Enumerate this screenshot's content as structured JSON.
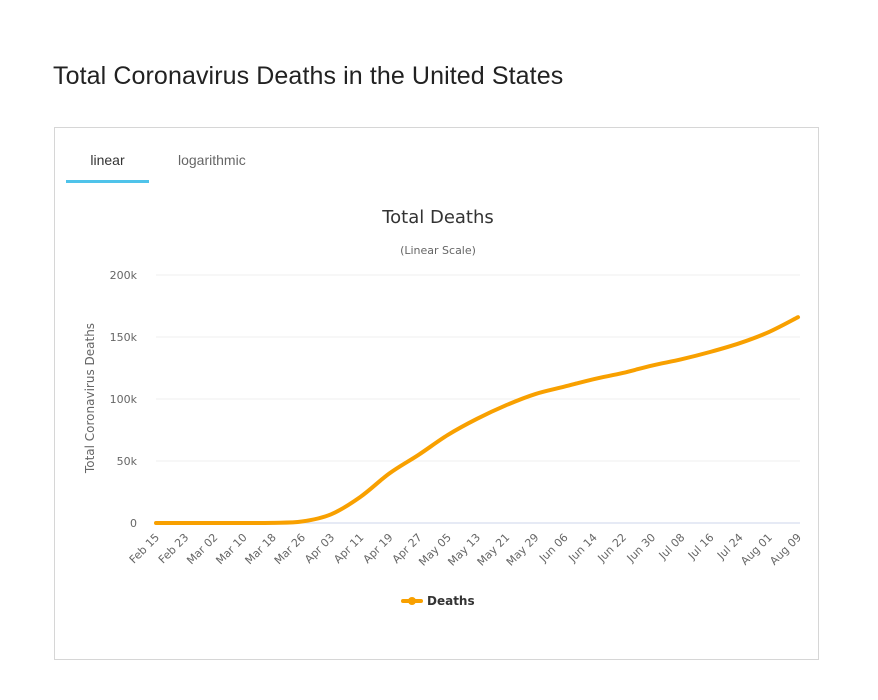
{
  "page": {
    "title": "Total Coronavirus Deaths in the United States"
  },
  "tabs": [
    {
      "label": "linear",
      "active": true
    },
    {
      "label": "logarithmic",
      "active": false
    }
  ],
  "colors": {
    "series": "#f8a000",
    "tab_accent": "#4fc3ea"
  },
  "chart_data": {
    "type": "line",
    "title": "Total Deaths",
    "subtitle": "(Linear Scale)",
    "xlabel": "",
    "ylabel": "Total Coronavirus Deaths",
    "ylim": [
      0,
      200000
    ],
    "yticks": [
      0,
      50000,
      100000,
      150000,
      200000
    ],
    "ytick_labels": [
      "0",
      "50k",
      "100k",
      "150k",
      "200k"
    ],
    "grid": true,
    "legend": "bottom-center",
    "x": [
      "Feb 15",
      "Feb 23",
      "Mar 02",
      "Mar 10",
      "Mar 18",
      "Mar 26",
      "Apr 03",
      "Apr 11",
      "Apr 19",
      "Apr 27",
      "May 05",
      "May 13",
      "May 21",
      "May 29",
      "Jun 06",
      "Jun 14",
      "Jun 22",
      "Jun 30",
      "Jul 08",
      "Jul 16",
      "Jul 24",
      "Aug 01",
      "Aug 09"
    ],
    "series": [
      {
        "name": "Deaths",
        "values": [
          0,
          0,
          10,
          30,
          150,
          1200,
          7000,
          21000,
          40000,
          55000,
          71000,
          84000,
          95000,
          104000,
          110000,
          116000,
          121000,
          127000,
          132000,
          138000,
          145000,
          154000,
          166000
        ]
      }
    ]
  }
}
